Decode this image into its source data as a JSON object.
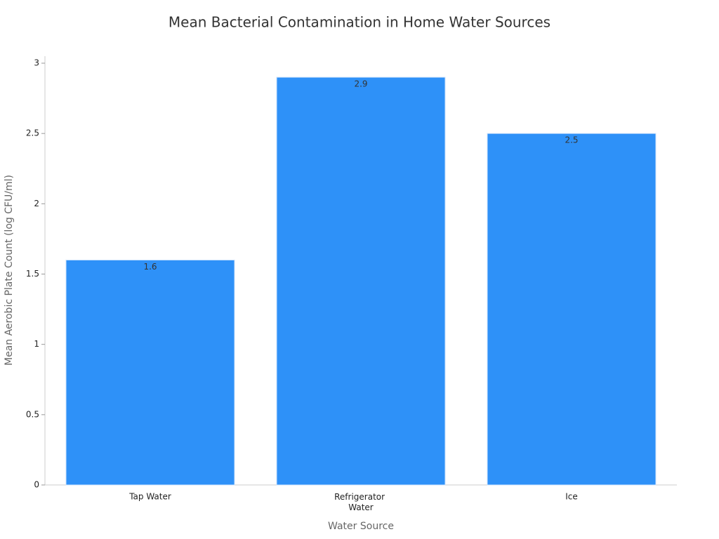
{
  "chart_data": {
    "type": "bar",
    "title": "Mean Bacterial Contamination in Home Water Sources",
    "x_label": "Water Source",
    "y_label": "Mean Aerobic Plate Count (log CFU/ml)",
    "categories": [
      "Tap Water",
      "Refrigerator Water",
      "Ice"
    ],
    "values": [
      1.6,
      2.9,
      2.5
    ],
    "color": "#2e91f8",
    "ylim": [
      0,
      3.05
    ],
    "yticks": [
      0,
      0.5,
      1,
      1.5,
      2,
      2.5,
      3
    ],
    "grid": false
  }
}
